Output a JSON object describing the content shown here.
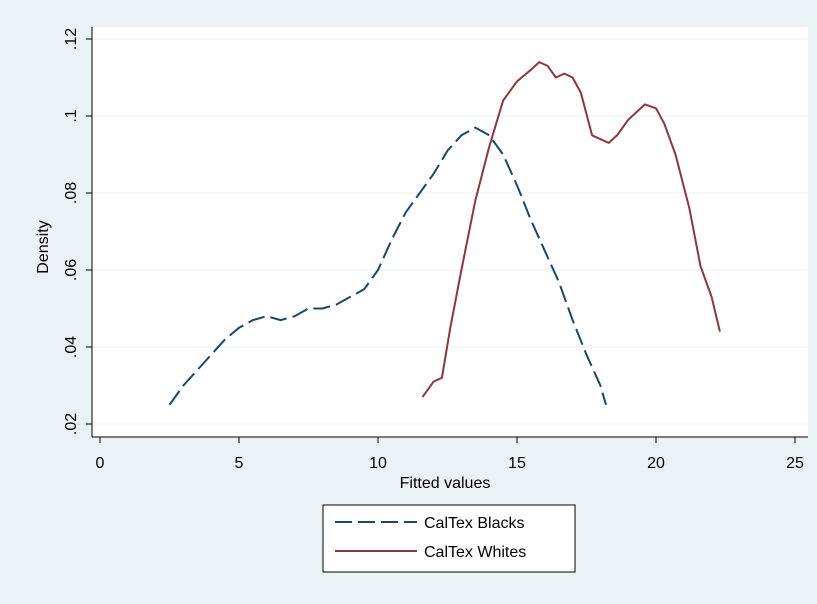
{
  "chart_data": {
    "type": "line",
    "xlabel": "Fitted values",
    "ylabel": "Density",
    "xlim": [
      0,
      25
    ],
    "ylim": [
      0.02,
      0.12
    ],
    "x_ticks": [
      0,
      5,
      10,
      15,
      20,
      25
    ],
    "x_tick_labels": [
      "0",
      "5",
      "10",
      "15",
      "20",
      "25"
    ],
    "y_ticks": [
      0.02,
      0.04,
      0.06,
      0.08,
      0.1,
      0.12
    ],
    "y_tick_labels": [
      ".02",
      ".04",
      ".06",
      ".08",
      ".1",
      ".12"
    ],
    "grid": true,
    "legend_position": "bottom",
    "series": [
      {
        "name": "CalTex Blacks",
        "color": "#1a476f",
        "dash": "long-dash",
        "points": [
          [
            2.5,
            0.025
          ],
          [
            3.0,
            0.03
          ],
          [
            3.5,
            0.034
          ],
          [
            4.0,
            0.038
          ],
          [
            4.5,
            0.042
          ],
          [
            5.0,
            0.045
          ],
          [
            5.5,
            0.047
          ],
          [
            6.0,
            0.048
          ],
          [
            6.5,
            0.047
          ],
          [
            7.0,
            0.048
          ],
          [
            7.5,
            0.05
          ],
          [
            8.0,
            0.05
          ],
          [
            8.5,
            0.051
          ],
          [
            9.0,
            0.053
          ],
          [
            9.5,
            0.055
          ],
          [
            10.0,
            0.06
          ],
          [
            10.5,
            0.068
          ],
          [
            11.0,
            0.075
          ],
          [
            11.5,
            0.08
          ],
          [
            12.0,
            0.085
          ],
          [
            12.5,
            0.091
          ],
          [
            13.0,
            0.095
          ],
          [
            13.5,
            0.097
          ],
          [
            14.0,
            0.095
          ],
          [
            14.5,
            0.09
          ],
          [
            15.0,
            0.082
          ],
          [
            15.5,
            0.073
          ],
          [
            16.0,
            0.065
          ],
          [
            16.5,
            0.057
          ],
          [
            17.0,
            0.047
          ],
          [
            17.5,
            0.038
          ],
          [
            18.0,
            0.03
          ],
          [
            18.2,
            0.025
          ]
        ]
      },
      {
        "name": "CalTex Whites",
        "color": "#90353b",
        "dash": "solid",
        "points": [
          [
            11.6,
            0.027
          ],
          [
            12.0,
            0.031
          ],
          [
            12.3,
            0.032
          ],
          [
            12.6,
            0.045
          ],
          [
            13.0,
            0.06
          ],
          [
            13.5,
            0.078
          ],
          [
            14.0,
            0.092
          ],
          [
            14.5,
            0.104
          ],
          [
            15.0,
            0.109
          ],
          [
            15.5,
            0.112
          ],
          [
            15.8,
            0.114
          ],
          [
            16.1,
            0.113
          ],
          [
            16.4,
            0.11
          ],
          [
            16.7,
            0.111
          ],
          [
            17.0,
            0.11
          ],
          [
            17.3,
            0.106
          ],
          [
            17.7,
            0.095
          ],
          [
            18.0,
            0.094
          ],
          [
            18.3,
            0.093
          ],
          [
            18.6,
            0.095
          ],
          [
            19.0,
            0.099
          ],
          [
            19.3,
            0.101
          ],
          [
            19.6,
            0.103
          ],
          [
            20.0,
            0.102
          ],
          [
            20.3,
            0.098
          ],
          [
            20.7,
            0.09
          ],
          [
            21.2,
            0.076
          ],
          [
            21.6,
            0.061
          ],
          [
            22.0,
            0.053
          ],
          [
            22.3,
            0.044
          ]
        ]
      }
    ]
  }
}
